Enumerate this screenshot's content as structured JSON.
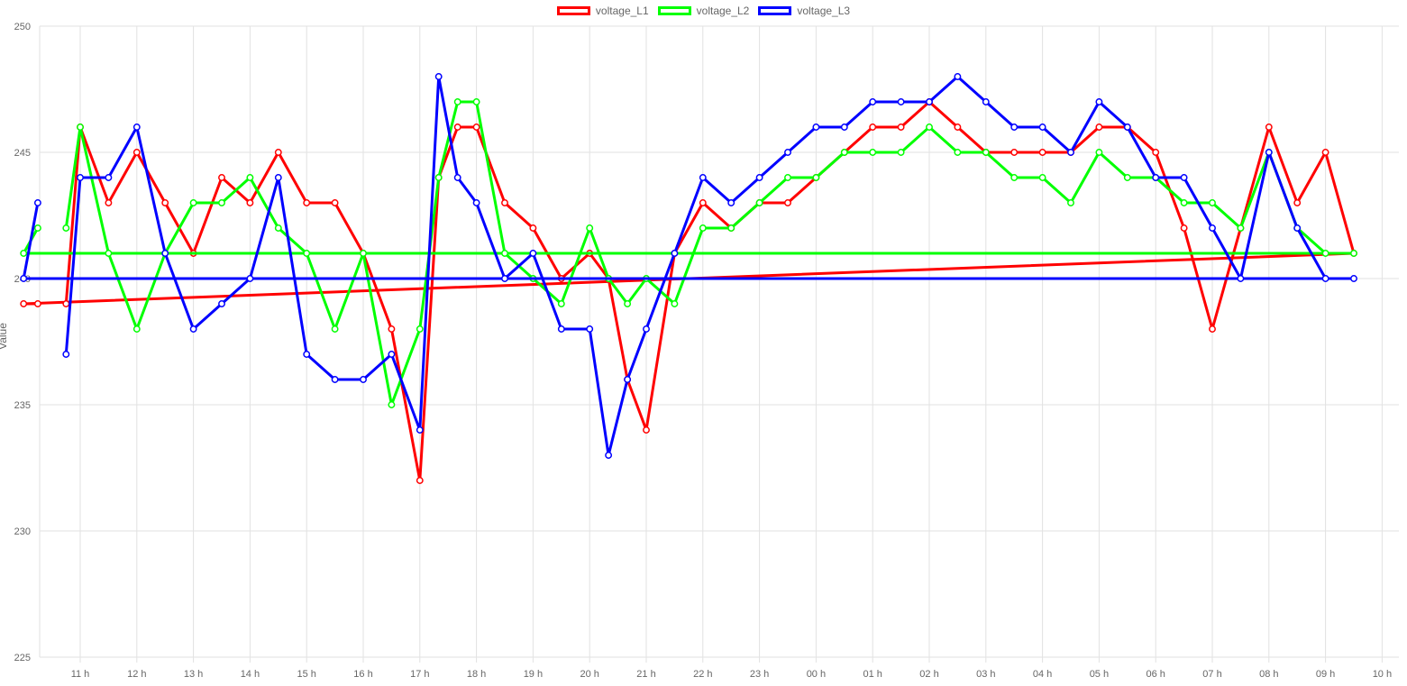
{
  "chart_data": {
    "type": "line",
    "title": "",
    "xlabel": "",
    "ylabel": "Value",
    "x_ticks": [
      "11 h",
      "12 h",
      "13 h",
      "14 h",
      "15 h",
      "16 h",
      "17 h",
      "18 h",
      "19 h",
      "20 h",
      "21 h",
      "22 h",
      "23 h",
      "00 h",
      "01 h",
      "02 h",
      "03 h",
      "04 h",
      "05 h",
      "06 h",
      "07 h",
      "08 h",
      "09 h",
      "10 h"
    ],
    "y_ticks": [
      225,
      230,
      235,
      240,
      245,
      250
    ],
    "ylim": [
      225,
      250
    ],
    "grid": true,
    "legend_position": "top",
    "x": [
      "10:45",
      "11:00",
      "11:30",
      "12:00",
      "12:30",
      "13:00",
      "13:30",
      "14:00",
      "14:30",
      "15:00",
      "15:30",
      "16:00",
      "16:30",
      "17:00",
      "17:20",
      "17:40",
      "18:00",
      "18:30",
      "19:00",
      "19:30",
      "20:00",
      "20:20",
      "20:40",
      "21:00",
      "21:30",
      "22:00",
      "22:30",
      "23:00",
      "23:30",
      "00:00",
      "00:30",
      "01:00",
      "01:30",
      "02:00",
      "02:30",
      "03:00",
      "03:30",
      "04:00",
      "04:30",
      "05:00",
      "05:30",
      "06:00",
      "06:30",
      "07:00",
      "07:30",
      "08:00",
      "08:30",
      "09:00",
      "09:30",
      "10:00",
      "10:15"
    ],
    "series": [
      {
        "name": "voltage_L1",
        "color": "#ff0000",
        "values": [
          239,
          246,
          243,
          245,
          243,
          241,
          244,
          243,
          245,
          243,
          243,
          241,
          238,
          232,
          244,
          246,
          246,
          243,
          242,
          240,
          241,
          240,
          236,
          234,
          241,
          243,
          242,
          243,
          243,
          244,
          245,
          246,
          246,
          247,
          246,
          245,
          245,
          245,
          245,
          246,
          246,
          245,
          242,
          238,
          242,
          246,
          243,
          245,
          241,
          239,
          239
        ]
      },
      {
        "name": "voltage_L2",
        "color": "#00ff00",
        "values": [
          242,
          246,
          241,
          238,
          241,
          243,
          243,
          244,
          242,
          241,
          238,
          241,
          235,
          238,
          244,
          247,
          247,
          241,
          240,
          239,
          242,
          240,
          239,
          240,
          239,
          242,
          242,
          243,
          244,
          244,
          245,
          245,
          245,
          246,
          245,
          245,
          244,
          244,
          243,
          245,
          244,
          244,
          243,
          243,
          242,
          245,
          242,
          241,
          241,
          241,
          242
        ]
      },
      {
        "name": "voltage_L3",
        "color": "#0000ff",
        "values": [
          237,
          244,
          244,
          246,
          241,
          238,
          239,
          240,
          244,
          237,
          236,
          236,
          237,
          234,
          248,
          244,
          243,
          240,
          241,
          238,
          238,
          233,
          236,
          238,
          241,
          244,
          243,
          244,
          245,
          246,
          246,
          247,
          247,
          247,
          248,
          247,
          246,
          246,
          245,
          247,
          246,
          244,
          244,
          242,
          240,
          245,
          242,
          240,
          240,
          240,
          243
        ]
      }
    ]
  }
}
